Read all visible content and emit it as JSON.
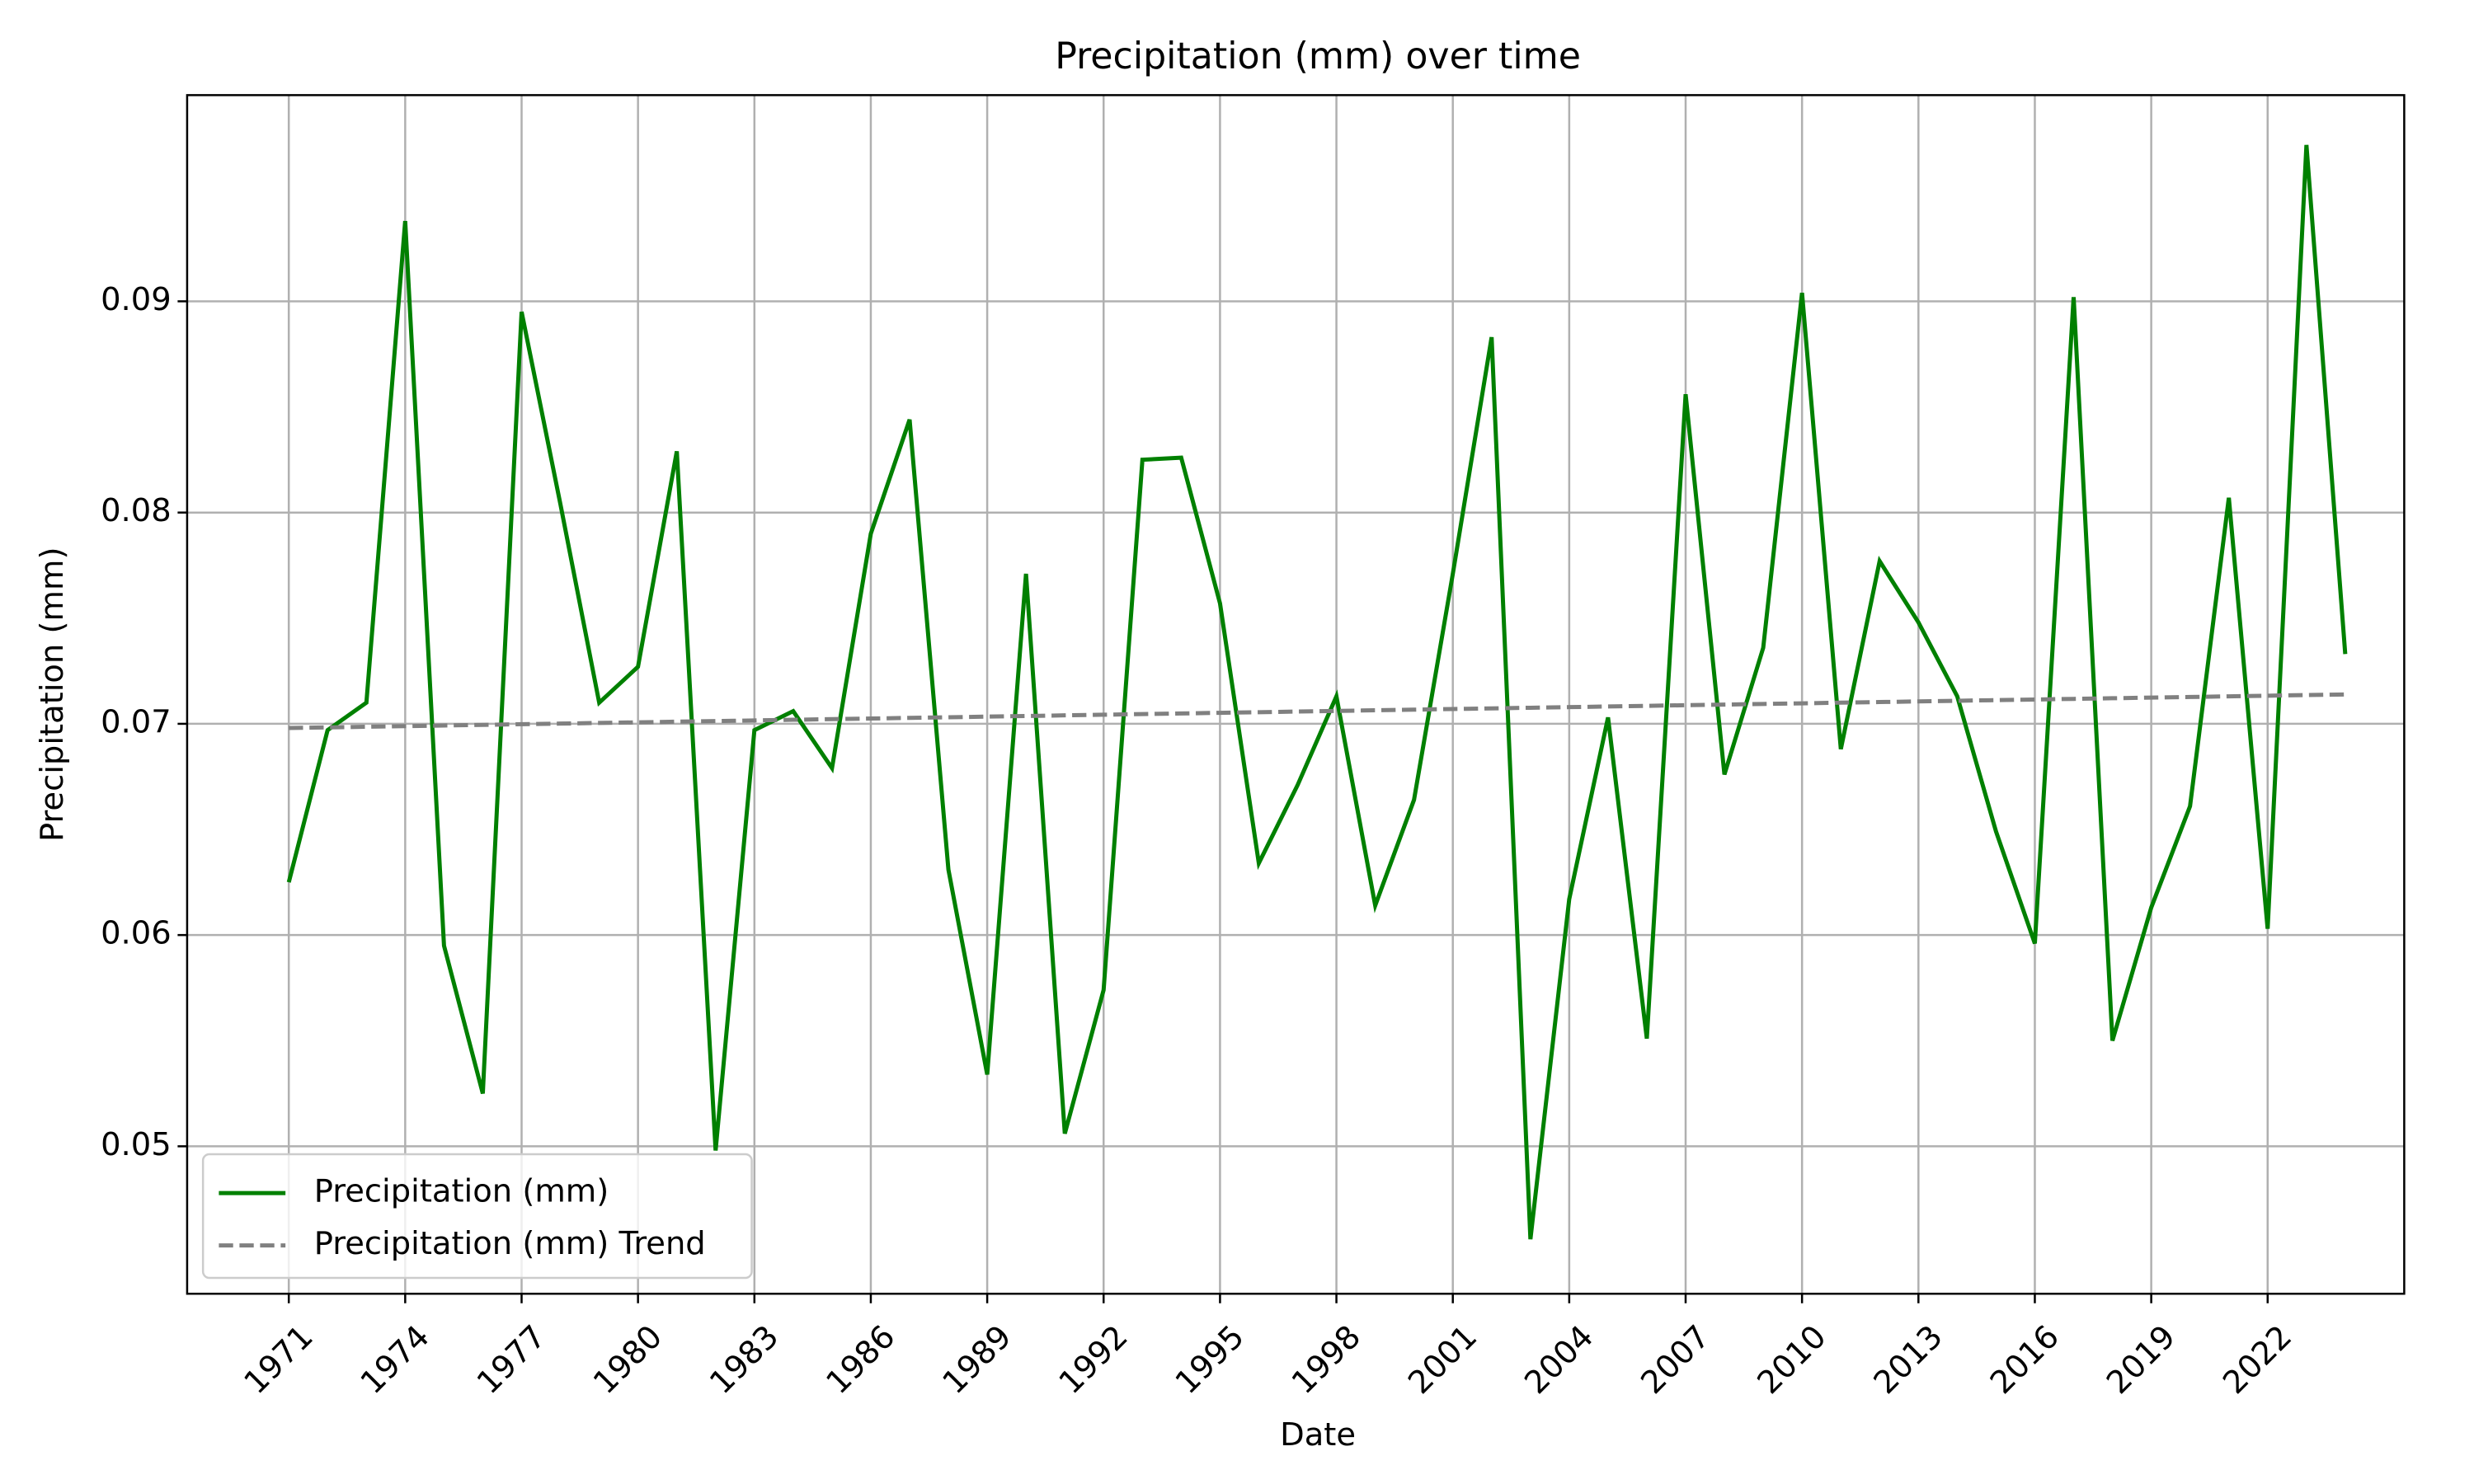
{
  "chart_data": {
    "type": "line",
    "title": "Precipitation (mm) over time",
    "xlabel": "Date",
    "ylabel": "Precipitation (mm)",
    "x": [
      1971,
      1972,
      1973,
      1974,
      1975,
      1976,
      1977,
      1978,
      1979,
      1980,
      1981,
      1982,
      1983,
      1984,
      1985,
      1986,
      1987,
      1988,
      1989,
      1990,
      1991,
      1992,
      1993,
      1994,
      1995,
      1996,
      1997,
      1998,
      1999,
      2000,
      2001,
      2002,
      2003,
      2004,
      2005,
      2006,
      2007,
      2008,
      2009,
      2010,
      2011,
      2012,
      2013,
      2014,
      2015,
      2016,
      2017,
      2018,
      2019,
      2020,
      2021,
      2022,
      2023,
      2024
    ],
    "series": [
      {
        "name": "Precipitation (mm)",
        "color": "#008000",
        "linestyle": "solid",
        "values": [
          0.0625,
          0.0697,
          0.071,
          0.0938,
          0.0595,
          0.0525,
          0.0895,
          0.0804,
          0.071,
          0.0727,
          0.0829,
          0.0498,
          0.0697,
          0.0706,
          0.0679,
          0.079,
          0.0844,
          0.0631,
          0.0534,
          0.0771,
          0.0506,
          0.0574,
          0.0825,
          0.0826,
          0.0757,
          0.0634,
          0.0671,
          0.0713,
          0.0614,
          0.0664,
          0.0771,
          0.0883,
          0.0456,
          0.0617,
          0.0703,
          0.0551,
          0.0856,
          0.0676,
          0.0736,
          0.0904,
          0.0688,
          0.0777,
          0.0748,
          0.0713,
          0.0649,
          0.0596,
          0.0902,
          0.055,
          0.0613,
          0.0661,
          0.0807,
          0.0603,
          0.0974,
          0.0733
        ]
      },
      {
        "name": "Precipitation (mm) Trend",
        "color": "#808080",
        "linestyle": "dashed",
        "values": [
          0.0698,
          0.06983,
          0.06986,
          0.06989,
          0.06992,
          0.06995,
          0.06998,
          0.07001,
          0.07004,
          0.07007,
          0.0701,
          0.07013,
          0.07016,
          0.07019,
          0.07022,
          0.07025,
          0.07028,
          0.07031,
          0.07034,
          0.07037,
          0.0704,
          0.07043,
          0.07046,
          0.07049,
          0.07052,
          0.07055,
          0.07058,
          0.07061,
          0.07064,
          0.07067,
          0.0707,
          0.07073,
          0.07076,
          0.07079,
          0.07082,
          0.07085,
          0.07088,
          0.07091,
          0.07094,
          0.07097,
          0.071,
          0.07103,
          0.07106,
          0.07109,
          0.07112,
          0.07115,
          0.07118,
          0.07121,
          0.07124,
          0.07127,
          0.0713,
          0.07133,
          0.07136,
          0.07139
        ]
      }
    ],
    "xlim": [
      1968.38,
      2025.52
    ],
    "xticks": [
      1971,
      1974,
      1977,
      1980,
      1983,
      1986,
      1989,
      1992,
      1995,
      1998,
      2001,
      2004,
      2007,
      2010,
      2013,
      2016,
      2019,
      2022
    ],
    "ylim": [
      0.04302,
      0.09976
    ],
    "yticks": [
      0.05,
      0.06,
      0.07,
      0.08,
      0.09
    ],
    "grid": true,
    "legend": "lower left"
  }
}
